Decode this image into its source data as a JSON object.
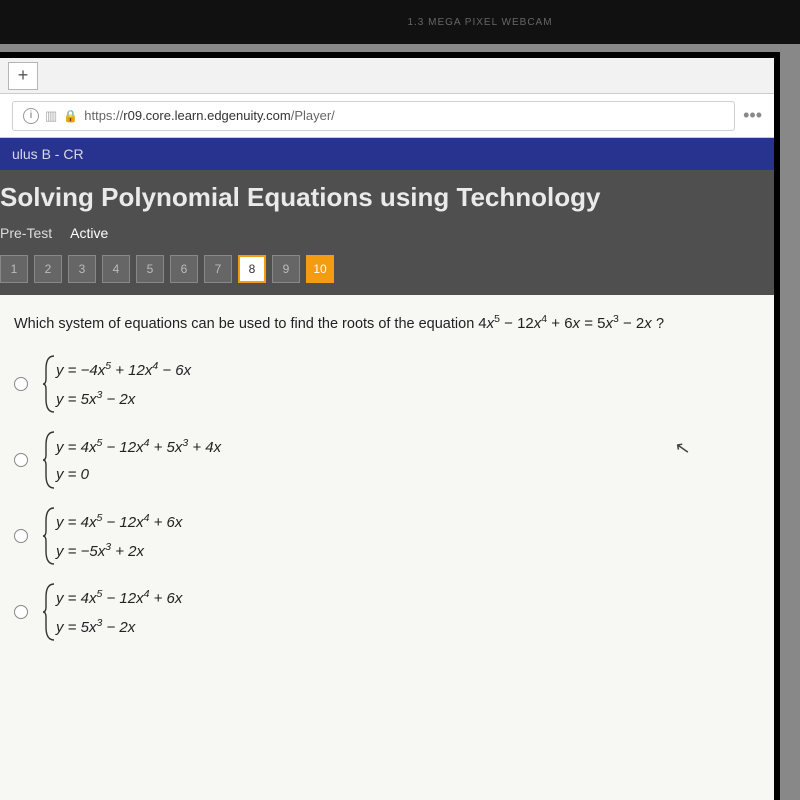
{
  "webcam": {
    "label": "1.3 MEGA PIXEL WEBCAM"
  },
  "browser": {
    "newtab_glyph": "+",
    "url_display_prefix": "https://",
    "url_domain": "r09.core.learn.edgenuity.com",
    "url_path": "/Player/"
  },
  "app": {
    "course_breadcrumb": "ulus B - CR",
    "lesson_title": "Solving Polynomial Equations using Technology",
    "pretest_label": "Pre-Test",
    "active_label": "Active",
    "question_nav": [
      "1",
      "2",
      "3",
      "4",
      "5",
      "6",
      "7",
      "8",
      "9",
      "10"
    ],
    "current_index": 7,
    "last_index": 9
  },
  "question": {
    "stem": "Which system of equations can be used to find the roots of the equation",
    "equation": "4x⁵ − 12x⁴ + 6x = 5x³ − 2x",
    "qmark": "?",
    "options": [
      {
        "line1": "y = −4x⁵ + 12x⁴ − 6x",
        "line2": "y = 5x³ − 2x"
      },
      {
        "line1": "y = 4x⁵ − 12x⁴ + 5x³ + 4x",
        "line2": "y = 0"
      },
      {
        "line1": "y = 4x⁵ − 12x⁴ + 6x",
        "line2": "y = −5x³ + 2x"
      },
      {
        "line1": "y = 4x⁵ − 12x⁴ + 6x",
        "line2": "y = 5x³ − 2x"
      }
    ]
  },
  "colors": {
    "header_blue": "#27338f",
    "header_gray": "#4f4f4f",
    "accent_orange": "#f39c12",
    "content_bg": "#f7f7f3"
  }
}
